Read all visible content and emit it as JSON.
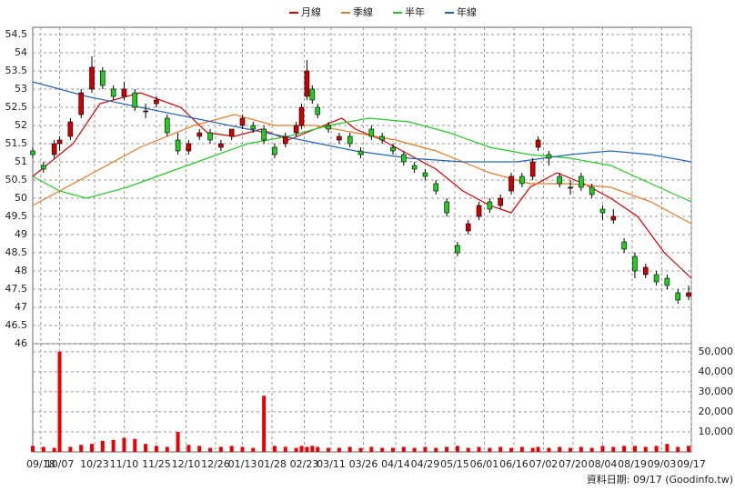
{
  "chart_data": {
    "type": "candlestick",
    "up_color": "#cc0000",
    "down_color": "#22cc22",
    "xlim": [
      0,
      245
    ],
    "xticks": [
      {
        "value": 3,
        "label": "09/18"
      },
      {
        "value": 10,
        "label": "10/07"
      },
      {
        "value": 23,
        "label": "10/23"
      },
      {
        "value": 34,
        "label": "11/10"
      },
      {
        "value": 46,
        "label": "11/25"
      },
      {
        "value": 57,
        "label": "12/10"
      },
      {
        "value": 68,
        "label": "12/26"
      },
      {
        "value": 78,
        "label": "01/13"
      },
      {
        "value": 89,
        "label": "01/28"
      },
      {
        "value": 101,
        "label": "02/23"
      },
      {
        "value": 111,
        "label": "03/11"
      },
      {
        "value": 123,
        "label": "03/26"
      },
      {
        "value": 135,
        "label": "04/14"
      },
      {
        "value": 146,
        "label": "04/29"
      },
      {
        "value": 157,
        "label": "05/15"
      },
      {
        "value": 168,
        "label": "06/01"
      },
      {
        "value": 179,
        "label": "06/16"
      },
      {
        "value": 190,
        "label": "07/02"
      },
      {
        "value": 201,
        "label": "07/20"
      },
      {
        "value": 212,
        "label": "08/04"
      },
      {
        "value": 223,
        "label": "08/19"
      },
      {
        "value": 234,
        "label": "09/03"
      },
      {
        "value": 245,
        "label": "09/17"
      }
    ],
    "ylim": [
      46,
      54.7
    ],
    "yticks": [
      46,
      46.5,
      47,
      47.5,
      48,
      48.5,
      49,
      49.5,
      50,
      50.5,
      51,
      51.5,
      52,
      52.5,
      53,
      53.5,
      54,
      54.5
    ],
    "grid": true,
    "candles": {
      "x": [
        0,
        4,
        8,
        10,
        14,
        18,
        22,
        26,
        30,
        34,
        38,
        42,
        46,
        50,
        54,
        58,
        62,
        66,
        70,
        74,
        78,
        82,
        86,
        90,
        94,
        98,
        100,
        102,
        104,
        106,
        110,
        114,
        118,
        122,
        126,
        130,
        134,
        138,
        142,
        146,
        150,
        154,
        158,
        162,
        166,
        170,
        174,
        178,
        182,
        186,
        188,
        192,
        196,
        200,
        204,
        208,
        212,
        216,
        220,
        224,
        228,
        232,
        236,
        240,
        244
      ],
      "open": [
        51.3,
        50.9,
        51.2,
        51.5,
        51.7,
        52.3,
        53.0,
        53.5,
        53.0,
        52.8,
        52.9,
        52.4,
        52.6,
        52.2,
        51.6,
        51.3,
        51.7,
        51.8,
        51.4,
        51.7,
        52.0,
        52.0,
        51.9,
        51.4,
        51.5,
        51.8,
        52.0,
        52.8,
        53.0,
        52.5,
        52.0,
        51.6,
        51.7,
        51.3,
        51.9,
        51.7,
        51.4,
        51.2,
        50.9,
        50.7,
        50.4,
        49.9,
        48.7,
        49.1,
        49.5,
        49.9,
        49.8,
        50.2,
        50.6,
        50.6,
        51.4,
        51.2,
        50.6,
        50.3,
        50.6,
        50.3,
        49.7,
        49.4,
        48.8,
        48.4,
        47.9,
        47.9,
        47.8,
        47.4,
        47.3
      ],
      "high": [
        51.4,
        51.0,
        51.6,
        51.7,
        52.2,
        53.0,
        53.9,
        53.6,
        53.1,
        53.2,
        53.0,
        52.6,
        52.8,
        52.3,
        51.8,
        51.6,
        51.9,
        51.9,
        51.6,
        51.9,
        52.3,
        52.1,
        52.0,
        51.5,
        51.8,
        52.1,
        52.6,
        53.8,
        53.1,
        52.6,
        52.1,
        51.8,
        51.8,
        51.4,
        52.0,
        51.8,
        51.5,
        51.3,
        51.0,
        50.8,
        50.5,
        50.0,
        48.8,
        49.4,
        49.9,
        50.0,
        50.1,
        50.7,
        50.7,
        51.1,
        51.7,
        51.3,
        50.7,
        50.5,
        50.7,
        50.4,
        49.8,
        49.7,
        48.9,
        48.5,
        48.2,
        48.0,
        47.9,
        47.5,
        47.6
      ],
      "low": [
        51.1,
        50.7,
        51.1,
        51.3,
        51.6,
        52.2,
        52.9,
        53.0,
        52.7,
        52.7,
        52.4,
        52.2,
        52.5,
        51.7,
        51.2,
        51.2,
        51.6,
        51.5,
        51.3,
        51.6,
        51.9,
        51.8,
        51.5,
        51.1,
        51.4,
        51.7,
        51.9,
        52.7,
        52.6,
        52.2,
        51.8,
        51.5,
        51.4,
        51.1,
        51.6,
        51.5,
        51.2,
        50.9,
        50.7,
        50.5,
        50.1,
        49.5,
        48.4,
        49.0,
        49.4,
        49.6,
        49.7,
        50.1,
        50.3,
        50.5,
        51.3,
        50.9,
        50.3,
        50.1,
        50.2,
        50.0,
        49.4,
        49.3,
        48.5,
        47.8,
        47.8,
        47.6,
        47.5,
        47.1,
        47.2
      ],
      "close": [
        51.2,
        50.8,
        51.5,
        51.6,
        52.1,
        52.9,
        53.6,
        53.1,
        52.8,
        53.0,
        52.5,
        52.4,
        52.7,
        51.8,
        51.3,
        51.5,
        51.8,
        51.6,
        51.5,
        51.9,
        52.2,
        51.9,
        51.6,
        51.2,
        51.7,
        52.0,
        52.5,
        53.5,
        52.7,
        52.3,
        51.9,
        51.7,
        51.5,
        51.2,
        51.7,
        51.6,
        51.3,
        51.0,
        50.8,
        50.6,
        50.2,
        49.6,
        48.5,
        49.3,
        49.8,
        49.7,
        50.0,
        50.6,
        50.4,
        51.0,
        51.6,
        51.1,
        50.4,
        50.3,
        50.3,
        50.1,
        49.6,
        49.5,
        48.6,
        48.0,
        48.1,
        47.7,
        47.6,
        47.2,
        47.4
      ]
    },
    "volume": {
      "color": "#ee0000",
      "values": [
        3000,
        2500,
        2000,
        50000,
        2500,
        3500,
        4000,
        5500,
        6000,
        7000,
        6500,
        4000,
        3000,
        2500,
        10000,
        3500,
        3000,
        2000,
        2500,
        3000,
        2500,
        2000,
        28000,
        3000,
        2500,
        2000,
        3000,
        2500,
        3000,
        2500,
        2000,
        2000,
        2500,
        2000,
        2500,
        2000,
        2000,
        2500,
        2000,
        2500,
        2000,
        2500,
        3000,
        2000,
        2500,
        2000,
        2500,
        2000,
        2500,
        2000,
        2500,
        2000,
        2500,
        2000,
        2500,
        2000,
        3000,
        2500,
        3000,
        3000,
        2500,
        3000,
        4000,
        2500,
        3000
      ],
      "ylim": [
        0,
        54000
      ],
      "yticks": [
        {
          "value": 10000,
          "label": "10,000"
        },
        {
          "value": 20000,
          "label": "20,000"
        },
        {
          "value": 30000,
          "label": "30,000"
        },
        {
          "value": 40000,
          "label": "40,000"
        },
        {
          "value": 50000,
          "label": "50,000"
        }
      ]
    },
    "series": [
      {
        "name": "月線",
        "color": "#dd0000",
        "x": [
          0,
          15,
          25,
          40,
          55,
          65,
          75,
          85,
          95,
          105,
          115,
          120,
          130,
          140,
          150,
          160,
          170,
          178,
          185,
          195,
          205,
          215,
          225,
          235,
          245
        ],
        "values": [
          50.6,
          51.5,
          52.6,
          52.9,
          52.5,
          51.8,
          51.7,
          51.9,
          51.6,
          51.9,
          52.2,
          51.9,
          51.6,
          51.2,
          50.8,
          50.2,
          49.8,
          49.6,
          50.3,
          50.7,
          50.4,
          50.0,
          49.5,
          48.5,
          47.8
        ]
      },
      {
        "name": "季線",
        "color": "#ee7722",
        "x": [
          0,
          20,
          40,
          60,
          75,
          90,
          105,
          120,
          135,
          150,
          160,
          170,
          185,
          200,
          215,
          230,
          245
        ],
        "values": [
          49.8,
          50.6,
          51.4,
          52.0,
          52.3,
          52.0,
          52.0,
          51.8,
          51.6,
          51.3,
          51.0,
          50.7,
          50.4,
          50.4,
          50.3,
          49.9,
          49.3
        ]
      },
      {
        "name": "半年",
        "color": "#22cc22",
        "x": [
          0,
          10,
          20,
          35,
          50,
          65,
          80,
          95,
          110,
          125,
          140,
          155,
          170,
          185,
          200,
          215,
          230,
          245
        ],
        "values": [
          50.6,
          50.2,
          50.0,
          50.3,
          50.7,
          51.1,
          51.5,
          51.7,
          52.0,
          52.2,
          52.1,
          51.8,
          51.4,
          51.2,
          51.1,
          50.9,
          50.4,
          49.9
        ]
      },
      {
        "name": "年線",
        "color": "#2266bb",
        "x": [
          0,
          20,
          40,
          60,
          80,
          100,
          120,
          140,
          160,
          180,
          200,
          215,
          230,
          245
        ],
        "values": [
          53.2,
          52.8,
          52.5,
          52.2,
          51.9,
          51.6,
          51.3,
          51.1,
          51.0,
          51.0,
          51.2,
          51.3,
          51.2,
          51.0
        ]
      }
    ],
    "footer": "資料日期: 09/17  (Goodinfo.tw)"
  }
}
